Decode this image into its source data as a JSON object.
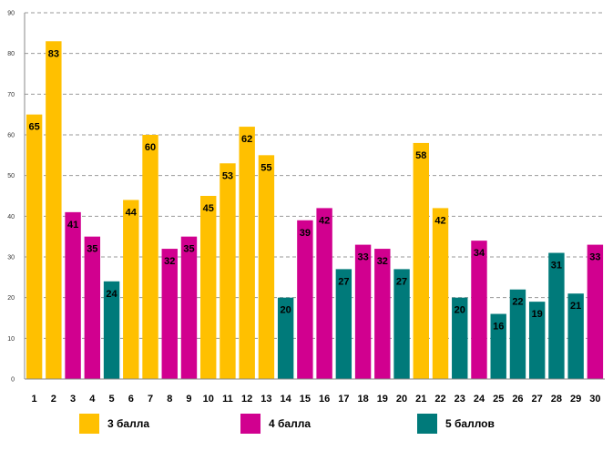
{
  "chart_data": {
    "type": "bar",
    "title": "",
    "xlabel": "",
    "ylabel": "",
    "ylim": [
      0,
      90
    ],
    "yticks": [
      0,
      10,
      20,
      30,
      40,
      50,
      60,
      70,
      80,
      90
    ],
    "grid": true,
    "categories": [
      "1",
      "2",
      "3",
      "4",
      "5",
      "6",
      "7",
      "8",
      "9",
      "10",
      "11",
      "12",
      "13",
      "14",
      "15",
      "16",
      "17",
      "18",
      "19",
      "20",
      "21",
      "22",
      "23",
      "24",
      "25",
      "26",
      "27",
      "28",
      "29",
      "30"
    ],
    "values": [
      65,
      83,
      41,
      35,
      24,
      44,
      60,
      32,
      35,
      45,
      53,
      62,
      55,
      20,
      39,
      42,
      27,
      33,
      32,
      27,
      58,
      42,
      20,
      34,
      16,
      22,
      19,
      31,
      21,
      33
    ],
    "groups": [
      "3 балла",
      "3 балла",
      "4 балла",
      "4 балла",
      "5 баллов",
      "3 балла",
      "3 балла",
      "4 балла",
      "4 балла",
      "3 балла",
      "3 балла",
      "3 балла",
      "3 балла",
      "5 баллов",
      "4 балла",
      "4 балла",
      "5 баллов",
      "4 балла",
      "4 балла",
      "5 баллов",
      "3 балла",
      "3 балла",
      "5 баллов",
      "4 балла",
      "5 баллов",
      "5 баллов",
      "5 баллов",
      "5 баллов",
      "5 баллов",
      "4 балла"
    ],
    "legend": [
      {
        "name": "3 балла",
        "color": "#FFC000"
      },
      {
        "name": "4 балла",
        "color": "#D1008F"
      },
      {
        "name": "5 баллов",
        "color": "#007A7A"
      }
    ],
    "legend_position": "bottom"
  }
}
